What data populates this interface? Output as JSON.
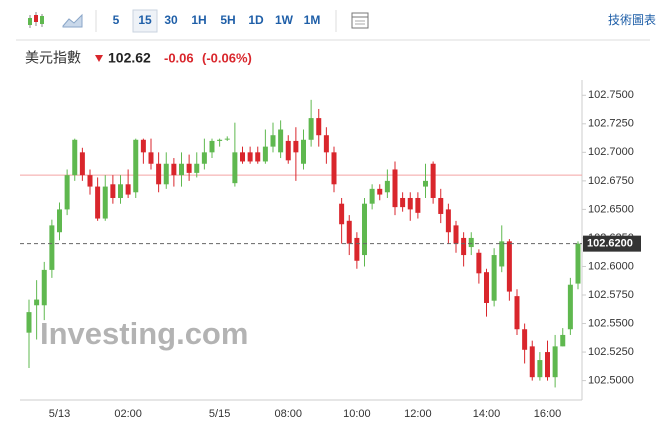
{
  "toolbar": {
    "intervals": [
      "5",
      "15",
      "30",
      "1H",
      "5H",
      "1D",
      "1W",
      "1M"
    ],
    "active": 1,
    "link": "技術圖表"
  },
  "header": {
    "name": "美元指數",
    "price": "102.62",
    "change": "-0.06",
    "change_pct": "(-0.06%)"
  },
  "chart_data": {
    "type": "candlestick",
    "watermark": "Investing.com",
    "up_color": "#5fb84f",
    "down_color": "#d9262c",
    "categories": [
      null,
      null,
      null,
      null,
      "5/13",
      null,
      null,
      null,
      null,
      null,
      null,
      null,
      null,
      "02:00",
      null,
      null,
      null,
      null,
      null,
      null,
      null,
      null,
      null,
      null,
      null,
      "5/15",
      null,
      null,
      null,
      null,
      null,
      null,
      null,
      null,
      "08:00",
      null,
      null,
      null,
      null,
      null,
      null,
      null,
      null,
      "10:00",
      null,
      null,
      null,
      null,
      null,
      null,
      null,
      "12:00",
      null,
      null,
      null,
      null,
      null,
      null,
      null,
      null,
      "14:00",
      null,
      null,
      null,
      null,
      null,
      null,
      null,
      "16:00",
      null,
      null,
      null,
      null
    ],
    "open": [
      102.542,
      102.566,
      102.566,
      102.597,
      102.63,
      102.65,
      102.68,
      102.7,
      102.68,
      102.67,
      102.642,
      102.672,
      102.66,
      102.672,
      102.665,
      102.711,
      102.7,
      102.69,
      102.672,
      102.69,
      102.68,
      102.69,
      102.682,
      102.69,
      102.7,
      102.71,
      102.712,
      102.673,
      102.7,
      102.7,
      102.7,
      102.692,
      102.705,
      102.7,
      102.71,
      102.71,
      102.69,
      102.711,
      102.73,
      102.715,
      102.7,
      102.655,
      102.64,
      102.625,
      102.61,
      102.655,
      102.668,
      102.665,
      102.685,
      102.66,
      102.66,
      102.66,
      102.67,
      102.69,
      102.66,
      102.65,
      102.636,
      102.625,
      102.617,
      102.612,
      102.595,
      102.57,
      102.6,
      102.622,
      102.574,
      102.545,
      102.53,
      102.503,
      102.525,
      102.503,
      102.53,
      102.545,
      102.585
    ],
    "high": [
      102.571,
      102.588,
      102.604,
      102.641,
      102.656,
      102.685,
      102.712,
      102.704,
      102.685,
      102.678,
      102.68,
      102.68,
      102.68,
      102.685,
      102.712,
      102.712,
      102.712,
      102.7,
      102.7,
      102.695,
      102.7,
      102.698,
      102.7,
      102.712,
      102.712,
      102.712,
      102.714,
      102.726,
      102.705,
      102.705,
      102.705,
      102.72,
      102.726,
      102.728,
      102.715,
      102.722,
      102.72,
      102.746,
      102.738,
      102.722,
      102.705,
      102.66,
      102.645,
      102.63,
      102.66,
      102.672,
      102.672,
      102.685,
      102.692,
      102.665,
      102.665,
      102.665,
      102.69,
      102.692,
      102.668,
      102.655,
      102.64,
      102.63,
      102.63,
      102.615,
      102.598,
      102.616,
      102.636,
      102.624,
      102.58,
      102.55,
      102.535,
      102.525,
      102.535,
      102.54,
      102.546,
      102.59,
      102.622
    ],
    "low": [
      102.511,
      102.536,
      102.553,
      102.59,
      102.623,
      102.645,
      102.675,
      102.675,
      102.663,
      102.64,
      102.64,
      102.655,
      102.655,
      102.66,
      102.66,
      102.69,
      102.685,
      102.665,
      102.668,
      102.67,
      102.67,
      102.675,
      102.678,
      102.685,
      102.695,
      102.705,
      102.71,
      102.67,
      102.69,
      102.69,
      102.69,
      102.69,
      102.7,
      102.695,
      102.69,
      102.675,
      102.685,
      102.705,
      102.705,
      102.69,
      102.665,
      102.62,
      102.61,
      102.598,
      102.6,
      102.65,
      102.658,
      102.66,
      102.645,
      102.648,
      102.64,
      102.642,
      102.66,
      102.655,
      102.638,
      102.62,
      102.612,
      102.6,
      102.61,
      102.585,
      102.556,
      102.565,
      102.595,
      102.57,
      102.54,
      102.515,
      102.5,
      102.5,
      102.5,
      102.494,
      102.53,
      102.54,
      102.58
    ],
    "close": [
      102.56,
      102.571,
      102.597,
      102.636,
      102.65,
      102.68,
      102.711,
      102.68,
      102.67,
      102.642,
      102.67,
      102.66,
      102.672,
      102.663,
      102.711,
      102.7,
      102.69,
      102.672,
      102.69,
      102.68,
      102.69,
      102.682,
      102.69,
      102.7,
      102.71,
      102.711,
      102.712,
      102.7,
      102.692,
      102.692,
      102.692,
      102.705,
      102.715,
      102.72,
      102.693,
      102.7,
      102.711,
      102.73,
      102.715,
      102.7,
      102.672,
      102.637,
      102.62,
      102.605,
      102.655,
      102.668,
      102.663,
      102.675,
      102.652,
      102.652,
      102.65,
      102.647,
      102.675,
      102.66,
      102.646,
      102.63,
      102.62,
      102.61,
      102.625,
      102.594,
      102.568,
      102.61,
      102.622,
      102.578,
      102.545,
      102.527,
      102.503,
      102.518,
      102.503,
      102.53,
      102.54,
      102.584,
      102.62
    ],
    "ylim": [
      102.483,
      102.759
    ],
    "yticks": [
      {
        "value": 102.75,
        "label": "102.7500"
      },
      {
        "value": 102.725,
        "label": "102.7250"
      },
      {
        "value": 102.7,
        "label": "102.7000"
      },
      {
        "value": 102.675,
        "label": "102.6750"
      },
      {
        "value": 102.65,
        "label": "102.6500"
      },
      {
        "value": 102.625,
        "label": "102.6250"
      },
      {
        "value": 102.6,
        "label": "102.6000"
      },
      {
        "value": 102.575,
        "label": "102.5750"
      },
      {
        "value": 102.55,
        "label": "102.5500"
      },
      {
        "value": 102.525,
        "label": "102.5250"
      },
      {
        "value": 102.5,
        "label": "102.5000"
      }
    ],
    "last_price": {
      "value": 102.62,
      "label": "102.6200"
    },
    "reference_line": 102.68,
    "reference_color": "#f4a3a3"
  }
}
